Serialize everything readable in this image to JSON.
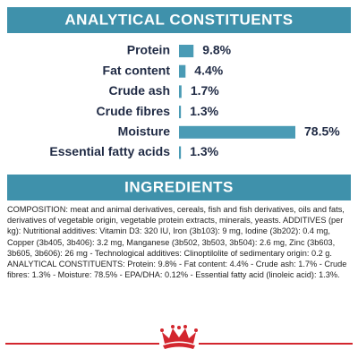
{
  "chart_data": {
    "type": "bar",
    "title": "ANALYTICAL CONSTITUENTS",
    "categories": [
      "Protein",
      "Fat content",
      "Crude ash",
      "Crude fibres",
      "Moisture",
      "Essential fatty acids"
    ],
    "values": [
      9.8,
      4.4,
      1.7,
      1.3,
      78.5,
      1.3
    ],
    "value_labels": [
      "9.8%",
      "4.4%",
      "1.7%",
      "1.3%",
      "78.5%",
      "1.3%"
    ],
    "color": "#4a9bb5"
  },
  "ingredients": {
    "title": "INGREDIENTS",
    "text": "COMPOSITION: meat and animal derivatives, cereals, fish and fish derivatives, oils and fats, derivatives of vegetable origin, vegetable protein extracts, minerals, yeasts. ADDITIVES (per kg): Nutritional additives: Vitamin D3: 320 IU, Iron (3b103): 9 mg, Iodine (3b202): 0.4 mg, Copper (3b405, 3b406): 3.2 mg, Manganese (3b502, 3b503, 3b504): 2.6 mg, Zinc (3b603, 3b605, 3b606): 26 mg - Technological additives: Clinoptilolite of sedimentary origin: 0.2 g. ANALYTICAL CONSTITUENTS: Protein: 9.8% - Fat content: 4.4% - Crude ash: 1.7% - Crude fibres: 1.3% - Moisture: 78.5% - EPA/DHA: 0.12% - Essential fatty acid (linoleic acid): 1.3%."
  }
}
